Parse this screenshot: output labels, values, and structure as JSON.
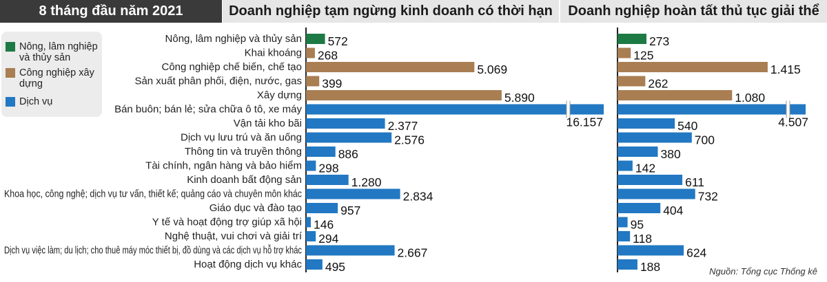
{
  "header": {
    "period": "8 tháng đầu năm 2021",
    "left_title": "Doanh nghiệp tạm ngừng kinh doanh có thời hạn",
    "right_title": "Doanh nghiệp hoàn tất thủ tục giải thể"
  },
  "legend": [
    {
      "label": "Nông, lâm nghiệp và thủy sản",
      "color": "#1e7a45",
      "icon": "square-swatch"
    },
    {
      "label": "Công nghiệp xây dựng",
      "color": "#a97e52",
      "icon": "square-swatch"
    },
    {
      "label": "Dịch vụ",
      "color": "#2278c2",
      "icon": "square-swatch"
    }
  ],
  "colors": {
    "agriculture": "#1e7a45",
    "industry": "#a97e52",
    "services": "#2278c2",
    "header_dark": "#3a3a3a",
    "header_light": "#e6e6e6",
    "axis_line": "#222222"
  },
  "source": "Nguồn: Tổng cục Thống kê",
  "chart_data": [
    {
      "type": "bar",
      "orientation": "horizontal",
      "title": "Doanh nghiệp tạm ngừng kinh doanh có thời hạn",
      "categories": [
        "Nông, lâm nghiệp và thủy sản",
        "Khai khoáng",
        "Công nghiệp chế biến, chế tạo",
        "Sản xuất phân phối, điện, nước, gas",
        "Xây dựng",
        "Bán buôn; bán lẻ; sửa chữa ô tô, xe máy",
        "Vận tải kho bãi",
        "Dịch vụ lưu trú và ăn uống",
        "Thông tin và truyền thông",
        "Tài chính, ngân hàng và bảo hiểm",
        "Kinh doanh bất động sản",
        "Khoa học, công nghệ; dịch vụ tư vấn, thiết kế; quảng cáo và chuyên môn khác",
        "Giáo dục và đào tạo",
        "Y tế và hoạt động trợ giúp xã hội",
        "Nghệ thuật, vui chơi và giải trí",
        "Dịch vụ việc làm; du lịch; cho thuê máy móc thiết bị, đồ dùng và các dịch vụ hỗ trợ khác",
        "Hoạt động dịch vụ khác"
      ],
      "sectors": [
        "agriculture",
        "industry",
        "industry",
        "industry",
        "industry",
        "services",
        "services",
        "services",
        "services",
        "services",
        "services",
        "services",
        "services",
        "services",
        "services",
        "services",
        "services"
      ],
      "values": [
        572,
        268,
        5069,
        399,
        5890,
        16157,
        2377,
        2576,
        886,
        298,
        1280,
        2834,
        957,
        146,
        294,
        2667,
        495
      ],
      "value_labels": [
        "572",
        "268",
        "5.069",
        "399",
        "5.890",
        "16.157",
        "2.377",
        "2.576",
        "886",
        "298",
        "1.280",
        "2.834",
        "957",
        "146",
        "294",
        "2.667",
        "495"
      ],
      "broken_bar_index": 5
    },
    {
      "type": "bar",
      "orientation": "horizontal",
      "title": "Doanh nghiệp hoàn tất thủ tục giải thể",
      "sectors": [
        "agriculture",
        "industry",
        "industry",
        "industry",
        "industry",
        "services",
        "services",
        "services",
        "services",
        "services",
        "services",
        "services",
        "services",
        "services",
        "services",
        "services",
        "services"
      ],
      "values": [
        273,
        125,
        1415,
        262,
        1080,
        4507,
        540,
        700,
        380,
        142,
        611,
        732,
        404,
        95,
        118,
        624,
        188
      ],
      "value_labels": [
        "273",
        "125",
        "1.415",
        "262",
        "1.080",
        "4.507",
        "540",
        "700",
        "380",
        "142",
        "611",
        "732",
        "404",
        "95",
        "118",
        "624",
        "188"
      ],
      "broken_bar_index": 5
    }
  ]
}
